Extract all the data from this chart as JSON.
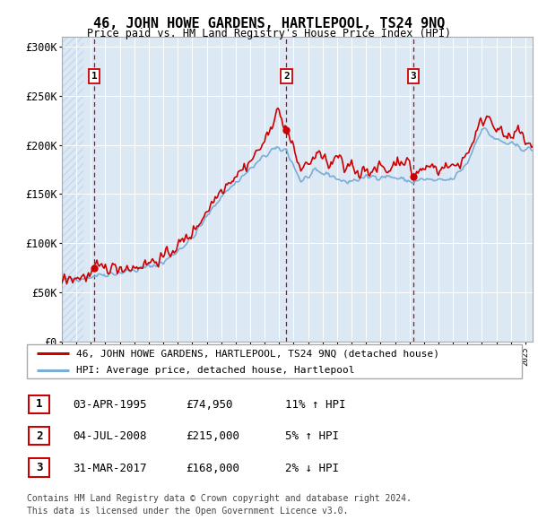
{
  "title": "46, JOHN HOWE GARDENS, HARTLEPOOL, TS24 9NQ",
  "subtitle": "Price paid vs. HM Land Registry's House Price Index (HPI)",
  "ylim": [
    0,
    310000
  ],
  "yticks": [
    0,
    50000,
    100000,
    150000,
    200000,
    250000,
    300000
  ],
  "ytick_labels": [
    "£0",
    "£50K",
    "£100K",
    "£150K",
    "£200K",
    "£250K",
    "£300K"
  ],
  "hpi_color": "#7aaed6",
  "price_color": "#cc0000",
  "dashed_vline_color": "#cc0000",
  "chart_bg_color": "#dce9f5",
  "hatch_color": "#c5d8ed",
  "sale_points": [
    {
      "date_num": 1995.25,
      "price": 74950,
      "label": "1"
    },
    {
      "date_num": 2008.5,
      "price": 215000,
      "label": "2"
    },
    {
      "date_num": 2017.25,
      "price": 168000,
      "label": "3"
    }
  ],
  "legend_entries": [
    "46, JOHN HOWE GARDENS, HARTLEPOOL, TS24 9NQ (detached house)",
    "HPI: Average price, detached house, Hartlepool"
  ],
  "table_rows": [
    {
      "num": "1",
      "date": "03-APR-1995",
      "price": "£74,950",
      "hpi": "11% ↑ HPI"
    },
    {
      "num": "2",
      "date": "04-JUL-2008",
      "price": "£215,000",
      "hpi": "5% ↑ HPI"
    },
    {
      "num": "3",
      "date": "31-MAR-2017",
      "price": "£168,000",
      "hpi": "2% ↓ HPI"
    }
  ],
  "footnote": "Contains HM Land Registry data © Crown copyright and database right 2024.\nThis data is licensed under the Open Government Licence v3.0.",
  "xmin": 1993.0,
  "xmax": 2025.5
}
